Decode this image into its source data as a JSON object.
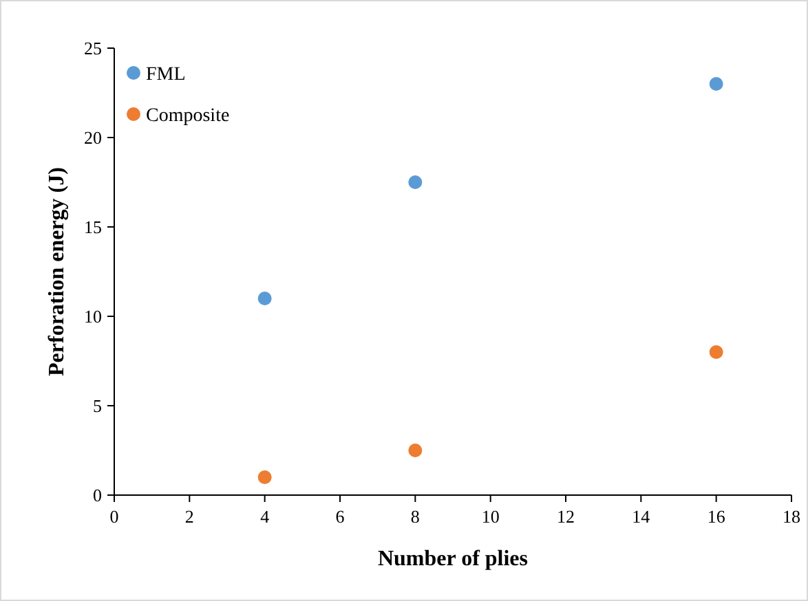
{
  "chart_data": {
    "type": "scatter",
    "xlabel": "Number of plies",
    "ylabel": "Perforation energy (J)",
    "x": [
      4,
      8,
      16
    ],
    "series": [
      {
        "name": "FML",
        "color": "#5b9bd5",
        "values": [
          11,
          17.5,
          23
        ]
      },
      {
        "name": "Composite",
        "color": "#ed7d31",
        "values": [
          1,
          2.5,
          8
        ]
      }
    ],
    "xlim": [
      0,
      18
    ],
    "xticks": [
      0,
      2,
      4,
      6,
      8,
      10,
      12,
      14,
      16,
      18
    ],
    "ylim": [
      0,
      25
    ],
    "yticks": [
      0,
      5,
      10,
      15,
      20,
      25
    ],
    "grid": false,
    "legend": "top left",
    "marker": "circle"
  }
}
